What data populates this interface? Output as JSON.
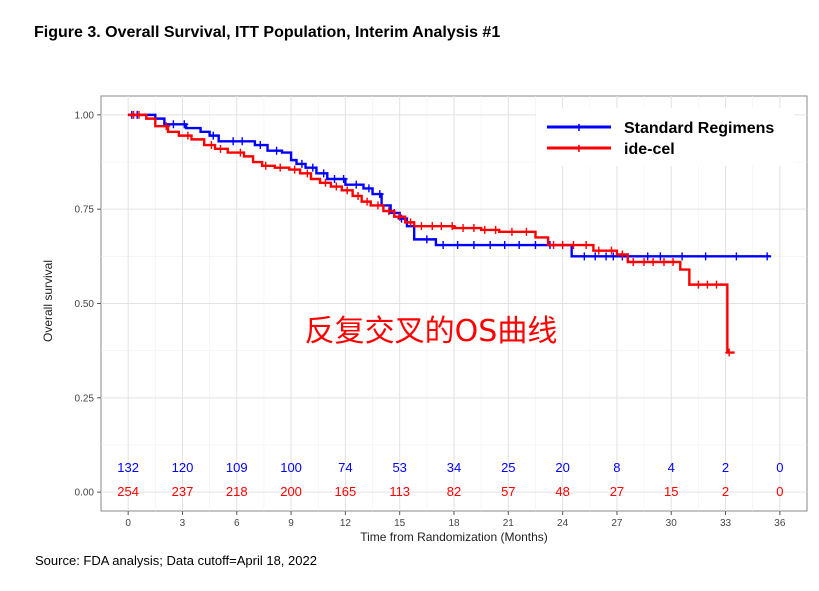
{
  "figure_title": "Figure 3. Overall Survival, ITT Population, Interim Analysis #1",
  "source_note": "Source: FDA analysis; Data cutoff=April 18, 2022",
  "overlay_annotation": "反复交叉的OS曲线",
  "chart_data": {
    "type": "line",
    "subtype": "kaplan-meier",
    "xlabel": "Time from Randomization (Months)",
    "ylabel": "Overall survival",
    "xlim": [
      -1.5,
      37.5
    ],
    "ylim": [
      -0.05,
      1.05
    ],
    "x_ticks": [
      0,
      3,
      6,
      9,
      12,
      15,
      18,
      21,
      24,
      27,
      30,
      33,
      36
    ],
    "x_tick_labels": [
      "0",
      "3",
      "6",
      "9",
      "12",
      "15",
      "18",
      "21",
      "24",
      "27",
      "30",
      "33",
      "36"
    ],
    "y_ticks": [
      0,
      0.25,
      0.5,
      0.75,
      1
    ],
    "y_tick_labels": [
      "0.00",
      "0.25",
      "0.50",
      "0.75",
      "1.00"
    ],
    "grid": true,
    "legend_position": "top-right",
    "series": [
      {
        "name": "Standard Regimens",
        "color": "#0000ff",
        "step_points": [
          [
            0,
            1.0
          ],
          [
            1.5,
            0.99
          ],
          [
            2,
            0.975
          ],
          [
            3.2,
            0.965
          ],
          [
            4,
            0.955
          ],
          [
            4.5,
            0.945
          ],
          [
            5,
            0.93
          ],
          [
            7,
            0.92
          ],
          [
            7.7,
            0.905
          ],
          [
            8.5,
            0.9
          ],
          [
            9,
            0.88
          ],
          [
            9.3,
            0.87
          ],
          [
            9.8,
            0.86
          ],
          [
            10.4,
            0.845
          ],
          [
            11,
            0.83
          ],
          [
            12,
            0.815
          ],
          [
            13,
            0.805
          ],
          [
            13.5,
            0.79
          ],
          [
            14,
            0.76
          ],
          [
            14.5,
            0.74
          ],
          [
            15,
            0.725
          ],
          [
            15.4,
            0.705
          ],
          [
            15.8,
            0.67
          ],
          [
            17,
            0.655
          ],
          [
            24.5,
            0.625
          ],
          [
            35.5,
            0.625
          ]
        ],
        "censor_x": [
          0.2,
          0.5,
          2.5,
          3.1,
          4.7,
          5.8,
          6.3,
          7.3,
          8.2,
          9.6,
          10.2,
          10.8,
          11.4,
          11.9,
          12.6,
          13.3,
          13.9,
          14.7,
          15.1,
          16.5,
          17.4,
          18.2,
          19.1,
          20,
          20.8,
          21.6,
          22.5,
          23.3,
          25.2,
          25.8,
          26.4,
          26.8,
          27.3,
          28.7,
          29.4,
          30.6,
          31.9,
          33.6,
          35.3
        ]
      },
      {
        "name": "ide-cel",
        "color": "#ff0000",
        "step_points": [
          [
            0,
            1.0
          ],
          [
            1,
            0.99
          ],
          [
            1.5,
            0.97
          ],
          [
            2.2,
            0.955
          ],
          [
            2.8,
            0.945
          ],
          [
            3.5,
            0.935
          ],
          [
            4.2,
            0.92
          ],
          [
            4.8,
            0.91
          ],
          [
            5.5,
            0.9
          ],
          [
            6.4,
            0.89
          ],
          [
            6.9,
            0.875
          ],
          [
            7.4,
            0.865
          ],
          [
            8.1,
            0.86
          ],
          [
            8.9,
            0.855
          ],
          [
            9.5,
            0.845
          ],
          [
            10.1,
            0.83
          ],
          [
            10.6,
            0.82
          ],
          [
            11.2,
            0.81
          ],
          [
            11.8,
            0.8
          ],
          [
            12.4,
            0.785
          ],
          [
            12.9,
            0.77
          ],
          [
            13.4,
            0.76
          ],
          [
            14.1,
            0.745
          ],
          [
            14.7,
            0.73
          ],
          [
            15.3,
            0.715
          ],
          [
            15.8,
            0.705
          ],
          [
            18,
            0.7
          ],
          [
            19.5,
            0.695
          ],
          [
            20.5,
            0.69
          ],
          [
            22.5,
            0.675
          ],
          [
            23.2,
            0.655
          ],
          [
            24.3,
            0.655
          ],
          [
            25.7,
            0.64
          ],
          [
            27,
            0.63
          ],
          [
            27.6,
            0.61
          ],
          [
            30.5,
            0.59
          ],
          [
            31,
            0.55
          ],
          [
            32.8,
            0.55
          ],
          [
            33.1,
            0.37
          ],
          [
            33.5,
            0.37
          ]
        ],
        "censor_x": [
          0.3,
          0.6,
          2.1,
          3.3,
          4.6,
          5.1,
          6.2,
          7.6,
          8.4,
          9.2,
          9.9,
          10.9,
          11.5,
          12.1,
          12.7,
          13.2,
          13.8,
          14.4,
          15,
          15.6,
          16.2,
          16.8,
          17.3,
          17.9,
          18.5,
          19.1,
          19.7,
          20.3,
          21.2,
          22,
          23.5,
          24,
          24.6,
          25.3,
          26,
          26.7,
          27.3,
          27.9,
          28.5,
          29,
          29.6,
          30.1,
          31.5,
          32,
          32.5,
          33.2
        ]
      }
    ],
    "risk_table": {
      "times": [
        0,
        3,
        6,
        9,
        12,
        15,
        18,
        21,
        24,
        27,
        30,
        33,
        36
      ],
      "rows": [
        {
          "name": "Standard Regimens",
          "color": "#0000ff",
          "values": [
            "132",
            "120",
            "109",
            "100",
            "74",
            "53",
            "34",
            "25",
            "20",
            "8",
            "4",
            "2",
            "0"
          ]
        },
        {
          "name": "ide-cel",
          "color": "#ff0000",
          "values": [
            "254",
            "237",
            "218",
            "200",
            "165",
            "113",
            "82",
            "57",
            "48",
            "27",
            "15",
            "2",
            "0"
          ]
        }
      ]
    }
  }
}
